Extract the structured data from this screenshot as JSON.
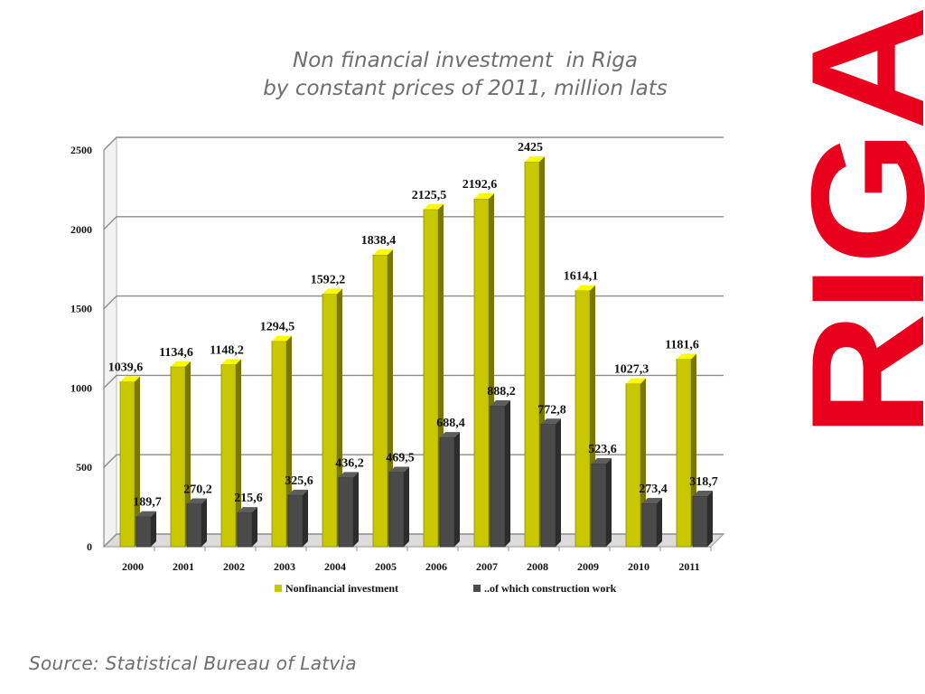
{
  "chart_data": {
    "type": "bar",
    "title_lines": [
      "Non financial investment  in Riga",
      "by constant prices of 2011, million lats"
    ],
    "categories": [
      "2000",
      "2001",
      "2002",
      "2003",
      "2004",
      "2005",
      "2006",
      "2007",
      "2008",
      "2009",
      "2010",
      "2011"
    ],
    "series": [
      {
        "name": "Nonfinancial investment",
        "color": "#c8c800",
        "values": [
          1039.6,
          1134.6,
          1148.2,
          1294.5,
          1592.2,
          1838.4,
          2125.5,
          2192.6,
          2425,
          1614.1,
          1027.3,
          1181.6
        ],
        "labels": [
          "1039,6",
          "1134,6",
          "1148,2",
          "1294,5",
          "1592,2",
          "1838,4",
          "2125,5",
          "2192,6",
          "2425",
          "1614,1",
          "1027,3",
          "1181,6"
        ]
      },
      {
        "name": "..of which construction work",
        "color": "#4a4a4a",
        "values": [
          189.7,
          270.2,
          215.6,
          325.6,
          436.2,
          469.5,
          688.4,
          888.2,
          772.8,
          523.6,
          273.4,
          318.7
        ],
        "labels": [
          "189,7",
          "270,2",
          "215,6",
          "325,6",
          "436,2",
          "469,5",
          "688,4",
          "888,2",
          "772,8",
          "523,6",
          "273,4",
          "318,7"
        ]
      }
    ],
    "y_ticks": [
      "0",
      "500",
      "1000",
      "1500",
      "2000",
      "2500"
    ],
    "ylim": [
      0,
      2500
    ],
    "grid": true,
    "legend": "bottom"
  },
  "source": "Source: Statistical Bureau of Latvia",
  "logo": {
    "text": "RIGA",
    "color": "#e8001c"
  }
}
